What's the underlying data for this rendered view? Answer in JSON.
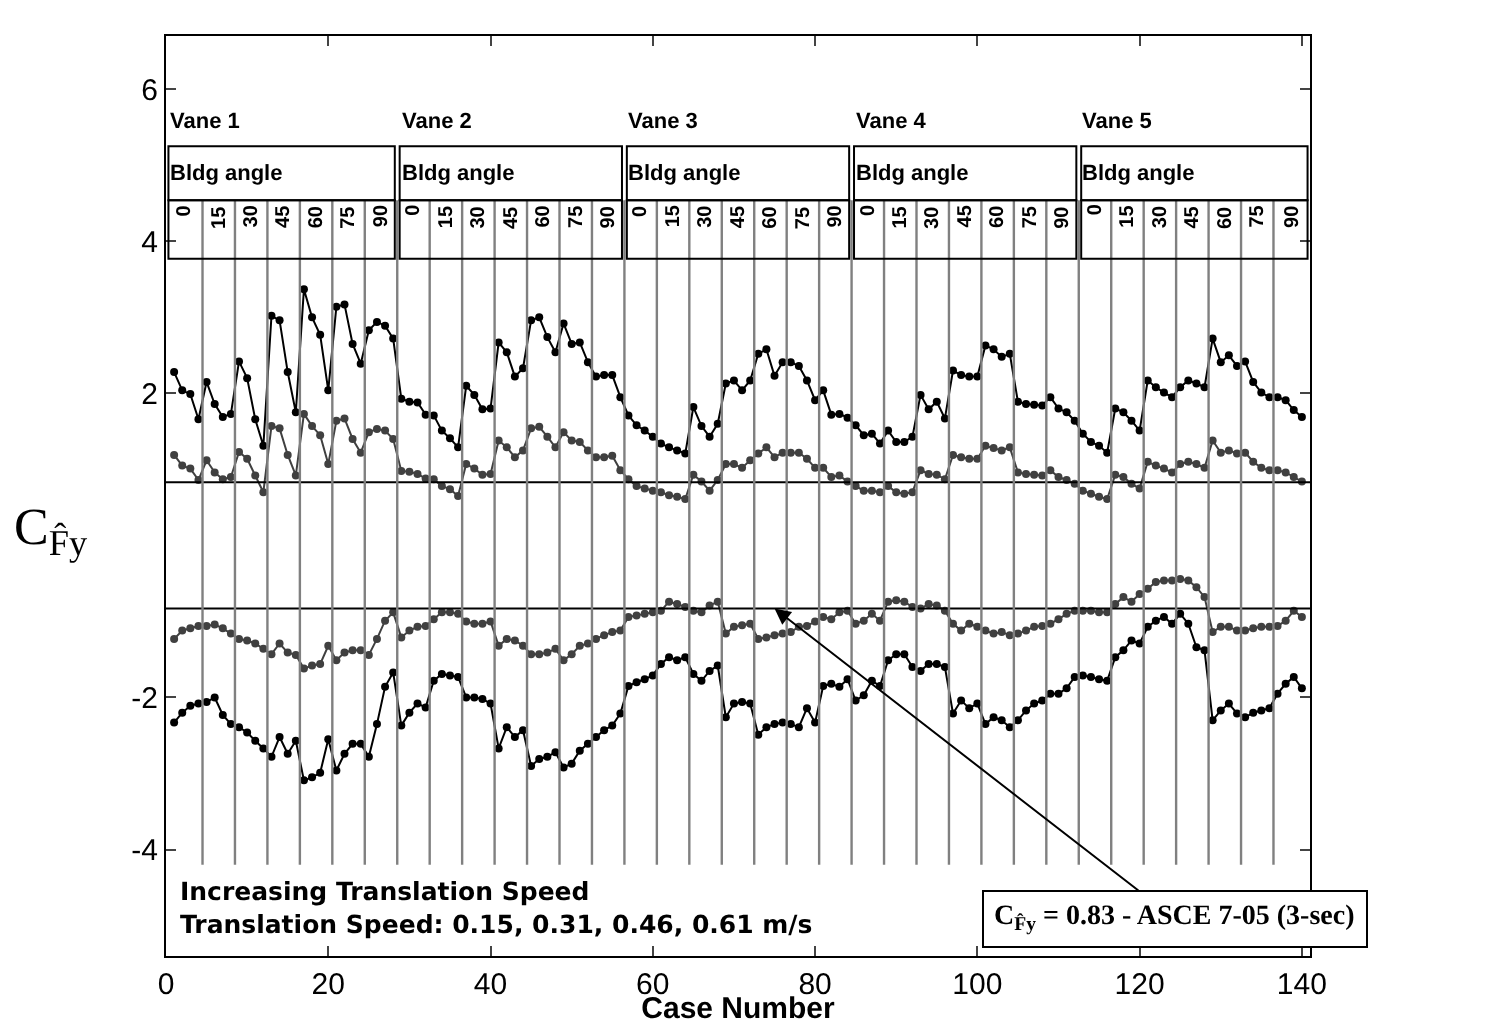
{
  "chart_data": {
    "type": "line",
    "xlabel": "Case Number",
    "ylabel": "C$_{F̂y}$",
    "marker": "circle",
    "line_style": "solid",
    "grid": false,
    "xlim": [
      0,
      141
    ],
    "xticks": [
      0,
      20,
      40,
      60,
      80,
      100,
      120,
      140
    ],
    "ylim": [
      -5.4,
      6.7
    ],
    "yticks": [
      -4,
      -2,
      2,
      4,
      6
    ],
    "x": [
      1,
      2,
      3,
      4,
      5,
      6,
      7,
      8,
      9,
      10,
      11,
      12,
      13,
      14,
      15,
      16,
      17,
      18,
      19,
      20,
      21,
      22,
      23,
      24,
      25,
      26,
      27,
      28,
      29,
      30,
      31,
      32,
      33,
      34,
      35,
      36,
      37,
      38,
      39,
      40,
      41,
      42,
      43,
      44,
      45,
      46,
      47,
      48,
      49,
      50,
      51,
      52,
      53,
      54,
      55,
      56,
      57,
      58,
      59,
      60,
      61,
      62,
      63,
      64,
      65,
      66,
      67,
      68,
      69,
      70,
      71,
      72,
      73,
      74,
      75,
      76,
      77,
      78,
      79,
      80,
      81,
      82,
      83,
      84,
      85,
      86,
      87,
      88,
      89,
      90,
      91,
      92,
      93,
      94,
      95,
      96,
      97,
      98,
      99,
      100,
      101,
      102,
      103,
      104,
      105,
      106,
      107,
      108,
      109,
      110,
      111,
      112,
      113,
      114,
      115,
      116,
      117,
      118,
      119,
      120,
      121,
      122,
      123,
      124,
      125,
      126,
      127,
      128,
      129,
      130,
      131,
      132,
      133,
      134,
      135,
      136,
      137,
      138,
      139,
      140
    ],
    "series": [
      {
        "color": "#000000",
        "values": [
          2.28,
          2.04,
          1.99,
          1.66,
          2.15,
          1.86,
          1.69,
          1.73,
          2.42,
          2.2,
          1.66,
          1.31,
          3.02,
          2.96,
          2.28,
          1.75,
          3.37,
          3.0,
          2.77,
          2.04,
          3.14,
          3.17,
          2.65,
          2.39,
          2.83,
          2.94,
          2.89,
          2.72,
          1.93,
          1.89,
          1.88,
          1.72,
          1.71,
          1.51,
          1.41,
          1.29,
          2.1,
          1.98,
          1.79,
          1.8,
          2.67,
          2.54,
          2.22,
          2.33,
          2.96,
          3.0,
          2.74,
          2.54,
          2.92,
          2.65,
          2.67,
          2.41,
          2.22,
          2.24,
          2.24,
          1.95,
          1.71,
          1.58,
          1.51,
          1.43,
          1.34,
          1.29,
          1.25,
          1.21,
          1.82,
          1.57,
          1.43,
          1.6,
          2.13,
          2.17,
          2.04,
          2.17,
          2.52,
          2.58,
          2.23,
          2.41,
          2.41,
          2.36,
          2.17,
          1.91,
          2.04,
          1.72,
          1.73,
          1.68,
          1.58,
          1.45,
          1.47,
          1.34,
          1.51,
          1.36,
          1.36,
          1.43,
          1.98,
          1.79,
          1.89,
          1.67,
          2.3,
          2.24,
          2.22,
          2.22,
          2.63,
          2.58,
          2.48,
          2.52,
          1.89,
          1.86,
          1.85,
          1.84,
          1.95,
          1.8,
          1.75,
          1.64,
          1.47,
          1.36,
          1.31,
          1.22,
          1.8,
          1.75,
          1.64,
          1.51,
          2.17,
          2.08,
          2.01,
          1.95,
          2.08,
          2.17,
          2.13,
          2.08,
          2.72,
          2.41,
          2.5,
          2.36,
          2.42,
          2.15,
          2.01,
          1.95,
          1.95,
          1.91,
          1.78,
          1.69
        ]
      },
      {
        "color": "#404040",
        "values": [
          1.19,
          1.05,
          1.01,
          0.86,
          1.12,
          0.96,
          0.87,
          0.9,
          1.23,
          1.14,
          0.92,
          0.7,
          1.57,
          1.54,
          1.19,
          0.92,
          1.73,
          1.57,
          1.45,
          1.07,
          1.64,
          1.67,
          1.4,
          1.22,
          1.49,
          1.53,
          1.51,
          1.4,
          0.98,
          0.97,
          0.94,
          0.88,
          0.87,
          0.78,
          0.74,
          0.65,
          1.07,
          1.01,
          0.93,
          0.94,
          1.38,
          1.29,
          1.16,
          1.25,
          1.54,
          1.56,
          1.43,
          1.29,
          1.49,
          1.38,
          1.36,
          1.25,
          1.16,
          1.16,
          1.18,
          0.99,
          0.87,
          0.78,
          0.75,
          0.72,
          0.7,
          0.66,
          0.64,
          0.61,
          0.93,
          0.84,
          0.72,
          0.86,
          1.07,
          1.07,
          1.02,
          1.12,
          1.21,
          1.29,
          1.16,
          1.22,
          1.22,
          1.22,
          1.14,
          1.02,
          1.02,
          0.9,
          0.92,
          0.84,
          0.78,
          0.72,
          0.72,
          0.7,
          0.78,
          0.7,
          0.68,
          0.7,
          0.99,
          0.94,
          0.93,
          0.87,
          1.19,
          1.16,
          1.14,
          1.14,
          1.31,
          1.28,
          1.25,
          1.29,
          0.96,
          0.94,
          0.93,
          0.92,
          0.99,
          0.9,
          0.86,
          0.81,
          0.72,
          0.68,
          0.64,
          0.61,
          0.93,
          0.9,
          0.81,
          0.75,
          1.1,
          1.05,
          1.01,
          0.96,
          1.07,
          1.1,
          1.07,
          1.02,
          1.38,
          1.22,
          1.25,
          1.21,
          1.22,
          1.1,
          1.02,
          0.99,
          0.99,
          0.96,
          0.9,
          0.84
        ]
      },
      {
        "color": "#404040",
        "values": [
          -1.23,
          -1.12,
          -1.09,
          -1.06,
          -1.06,
          -1.04,
          -1.09,
          -1.16,
          -1.23,
          -1.25,
          -1.29,
          -1.36,
          -1.43,
          -1.29,
          -1.41,
          -1.44,
          -1.62,
          -1.58,
          -1.56,
          -1.32,
          -1.51,
          -1.41,
          -1.38,
          -1.38,
          -1.44,
          -1.23,
          -0.99,
          -0.88,
          -1.21,
          -1.12,
          -1.07,
          -1.06,
          -0.97,
          -0.88,
          -0.88,
          -0.9,
          -1.0,
          -1.03,
          -1.03,
          -1.0,
          -1.32,
          -1.23,
          -1.25,
          -1.32,
          -1.43,
          -1.43,
          -1.41,
          -1.36,
          -1.51,
          -1.43,
          -1.32,
          -1.29,
          -1.23,
          -1.18,
          -1.14,
          -1.12,
          -0.94,
          -0.92,
          -0.9,
          -0.88,
          -0.86,
          -0.74,
          -0.77,
          -0.81,
          -0.86,
          -0.88,
          -0.79,
          -0.74,
          -1.16,
          -1.07,
          -1.05,
          -1.03,
          -1.23,
          -1.21,
          -1.18,
          -1.16,
          -1.14,
          -1.07,
          -1.06,
          -1.0,
          -0.94,
          -0.97,
          -0.88,
          -0.86,
          -1.03,
          -0.99,
          -0.9,
          -0.99,
          -0.74,
          -0.72,
          -0.74,
          -0.81,
          -0.83,
          -0.77,
          -0.79,
          -0.86,
          -1.03,
          -1.12,
          -1.03,
          -1.07,
          -1.12,
          -1.16,
          -1.14,
          -1.18,
          -1.16,
          -1.12,
          -1.07,
          -1.06,
          -1.03,
          -0.97,
          -0.9,
          -0.86,
          -0.86,
          -0.86,
          -0.88,
          -0.88,
          -0.77,
          -0.68,
          -0.74,
          -0.64,
          -0.57,
          -0.48,
          -0.46,
          -0.46,
          -0.44,
          -0.46,
          -0.55,
          -0.68,
          -1.14,
          -1.07,
          -1.07,
          -1.12,
          -1.12,
          -1.09,
          -1.07,
          -1.07,
          -1.06,
          -0.99,
          -0.86,
          -0.94
        ]
      },
      {
        "color": "#000000",
        "values": [
          -2.33,
          -2.2,
          -2.11,
          -2.08,
          -2.06,
          -2.0,
          -2.23,
          -2.35,
          -2.39,
          -2.46,
          -2.57,
          -2.67,
          -2.78,
          -2.52,
          -2.74,
          -2.57,
          -3.09,
          -3.05,
          -2.99,
          -2.55,
          -2.96,
          -2.74,
          -2.61,
          -2.61,
          -2.78,
          -2.35,
          -1.86,
          -1.67,
          -2.37,
          -2.2,
          -2.08,
          -2.13,
          -1.78,
          -1.69,
          -1.71,
          -1.73,
          -2.0,
          -2.0,
          -2.02,
          -2.08,
          -2.67,
          -2.39,
          -2.52,
          -2.43,
          -2.9,
          -2.81,
          -2.78,
          -2.72,
          -2.92,
          -2.87,
          -2.7,
          -2.61,
          -2.52,
          -2.43,
          -2.37,
          -2.21,
          -1.85,
          -1.8,
          -1.76,
          -1.71,
          -1.56,
          -1.47,
          -1.51,
          -1.47,
          -1.69,
          -1.78,
          -1.65,
          -1.58,
          -2.26,
          -2.08,
          -2.06,
          -2.08,
          -2.49,
          -2.39,
          -2.35,
          -2.33,
          -2.35,
          -2.39,
          -2.14,
          -2.33,
          -1.85,
          -1.82,
          -1.86,
          -1.76,
          -2.04,
          -1.97,
          -1.78,
          -1.85,
          -1.51,
          -1.43,
          -1.43,
          -1.6,
          -1.65,
          -1.56,
          -1.56,
          -1.6,
          -2.21,
          -2.04,
          -2.14,
          -2.08,
          -2.35,
          -2.26,
          -2.3,
          -2.39,
          -2.3,
          -2.17,
          -2.08,
          -2.04,
          -1.95,
          -1.95,
          -1.88,
          -1.73,
          -1.71,
          -1.73,
          -1.76,
          -1.78,
          -1.47,
          -1.38,
          -1.25,
          -1.29,
          -1.07,
          -0.99,
          -0.94,
          -1.03,
          -0.9,
          -1.03,
          -1.34,
          -1.38,
          -2.3,
          -2.17,
          -2.08,
          -2.21,
          -2.26,
          -2.2,
          -2.17,
          -2.14,
          -1.95,
          -1.82,
          -1.73,
          -1.88
        ]
      }
    ],
    "ref_lines": [
      {
        "axis": "y",
        "value": 0.83,
        "label": null
      },
      {
        "axis": "y",
        "value": -0.83,
        "label": null
      },
      {
        "axis": "x",
        "value": 4.5,
        "label": null,
        "color": "#808080"
      },
      {
        "axis": "x",
        "value": 8.5,
        "label": null,
        "color": "#808080"
      },
      {
        "axis": "x",
        "value": 12.5,
        "label": null,
        "color": "#808080"
      },
      {
        "axis": "x",
        "value": 16.5,
        "label": null,
        "color": "#808080"
      },
      {
        "axis": "x",
        "value": 20.5,
        "label": null,
        "color": "#808080"
      },
      {
        "axis": "x",
        "value": 24.5,
        "label": null,
        "color": "#808080"
      },
      {
        "axis": "x",
        "value": 28.5,
        "label": null,
        "color": "#808080"
      },
      {
        "axis": "x",
        "value": 32.5,
        "label": null,
        "color": "#808080"
      },
      {
        "axis": "x",
        "value": 36.5,
        "label": null,
        "color": "#808080"
      },
      {
        "axis": "x",
        "value": 40.5,
        "label": null,
        "color": "#808080"
      },
      {
        "axis": "x",
        "value": 44.5,
        "label": null,
        "color": "#808080"
      },
      {
        "axis": "x",
        "value": 48.5,
        "label": null,
        "color": "#808080"
      },
      {
        "axis": "x",
        "value": 52.5,
        "label": null,
        "color": "#808080"
      },
      {
        "axis": "x",
        "value": 56.5,
        "label": null,
        "color": "#808080"
      },
      {
        "axis": "x",
        "value": 60.5,
        "label": null,
        "color": "#808080"
      },
      {
        "axis": "x",
        "value": 64.5,
        "label": null,
        "color": "#808080"
      },
      {
        "axis": "x",
        "value": 68.5,
        "label": null,
        "color": "#808080"
      },
      {
        "axis": "x",
        "value": 72.5,
        "label": null,
        "color": "#808080"
      },
      {
        "axis": "x",
        "value": 76.5,
        "label": null,
        "color": "#808080"
      },
      {
        "axis": "x",
        "value": 80.5,
        "label": null,
        "color": "#808080"
      },
      {
        "axis": "x",
        "value": 84.5,
        "label": null,
        "color": "#808080"
      },
      {
        "axis": "x",
        "value": 88.5,
        "label": null,
        "color": "#808080"
      },
      {
        "axis": "x",
        "value": 92.5,
        "label": null,
        "color": "#808080"
      },
      {
        "axis": "x",
        "value": 96.5,
        "label": null,
        "color": "#808080"
      },
      {
        "axis": "x",
        "value": 100.5,
        "label": null,
        "color": "#808080"
      },
      {
        "axis": "x",
        "value": 104.5,
        "label": null,
        "color": "#808080"
      },
      {
        "axis": "x",
        "value": 108.5,
        "label": null,
        "color": "#808080"
      },
      {
        "axis": "x",
        "value": 112.5,
        "label": null,
        "color": "#808080"
      },
      {
        "axis": "x",
        "value": 116.5,
        "label": null,
        "color": "#808080"
      },
      {
        "axis": "x",
        "value": 120.5,
        "label": null,
        "color": "#808080"
      },
      {
        "axis": "x",
        "value": 124.5,
        "label": null,
        "color": "#808080"
      },
      {
        "axis": "x",
        "value": 128.5,
        "label": null,
        "color": "#808080"
      },
      {
        "axis": "x",
        "value": 132.5,
        "label": null,
        "color": "#808080"
      },
      {
        "axis": "x",
        "value": 136.5,
        "label": null,
        "color": "#808080"
      }
    ],
    "annotations": [
      "Vane 1",
      "Vane 2",
      "Vane 3",
      "Vane 4",
      "Vane 5",
      "Bldg angle",
      "Bldg angle",
      "Bldg angle",
      "Bldg angle",
      "Bldg angle",
      "0",
      "15",
      "30",
      "45",
      "60",
      "75",
      "90",
      "0",
      "15",
      "30",
      "45",
      "60",
      "75",
      "90",
      "0",
      "15",
      "30",
      "45",
      "60",
      "75",
      "90",
      "0",
      "15",
      "30",
      "45",
      "60",
      "75",
      "90",
      "0",
      "15",
      "30",
      "45",
      "60",
      "75",
      "90",
      "Increasing Translation Speed",
      "Translation Speed: 0.15, 0.31, 0.46, 0.61 m/s",
      {
        "text": "C$_{F̂y}$ = 0.83 - ASCE 7-05 (3-sec)",
        "x": 75,
        "y": -0.83
      }
    ]
  }
}
